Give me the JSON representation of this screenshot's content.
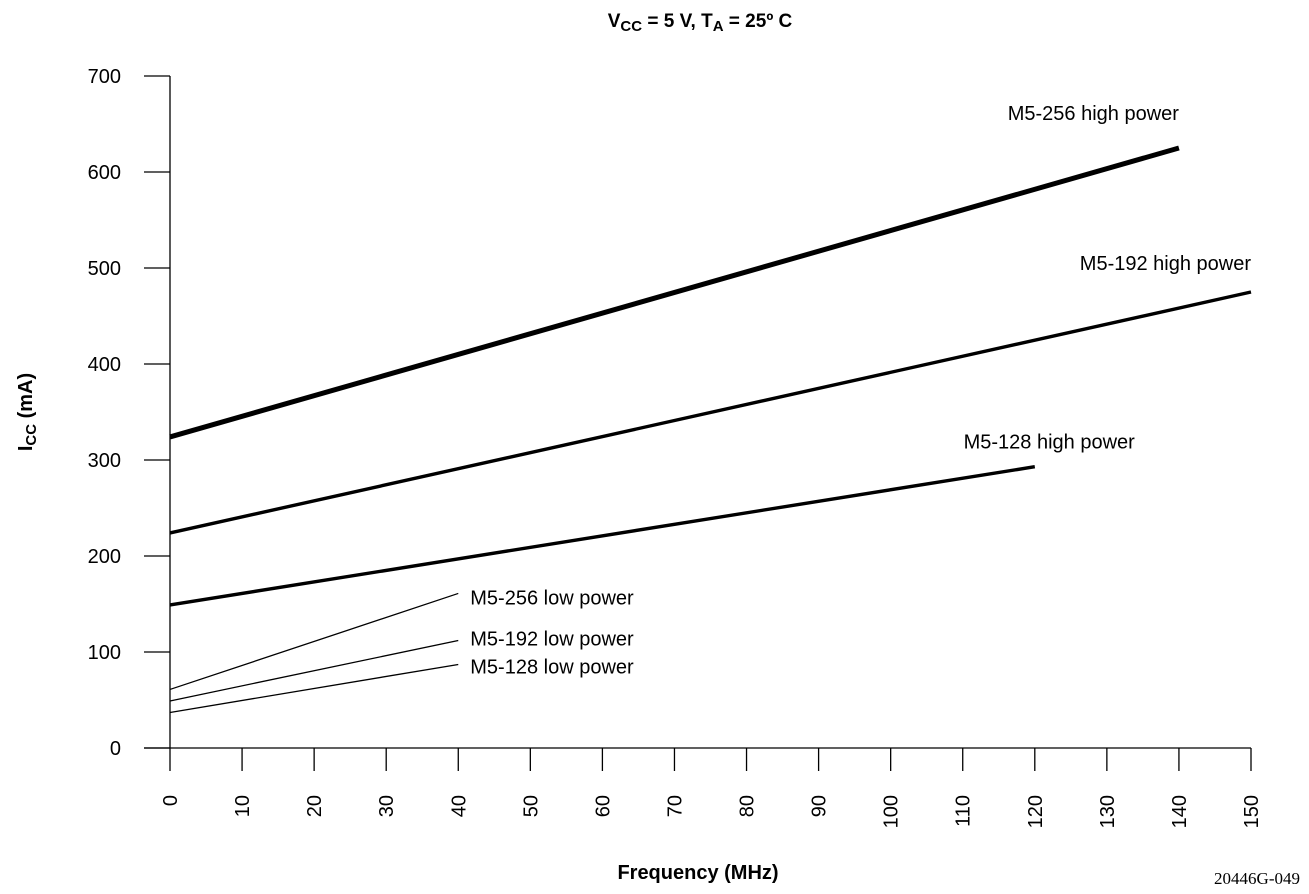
{
  "chart_data": {
    "type": "line",
    "title": {
      "v_main": "V",
      "v_sub": "CC",
      "v_rest": " = 5 V, T",
      "t_sub": "A",
      "t_rest": " = 25º C"
    },
    "xlabel": "Frequency (MHz)",
    "ylabel": {
      "main": "I",
      "sub": "CC",
      "rest": " (mA)"
    },
    "xlim": [
      0,
      150
    ],
    "ylim": [
      0,
      700
    ],
    "x_ticks": [
      0,
      10,
      20,
      30,
      40,
      50,
      60,
      70,
      80,
      90,
      100,
      110,
      120,
      130,
      140,
      150
    ],
    "y_ticks": [
      0,
      100,
      200,
      300,
      400,
      500,
      600,
      700
    ],
    "grid": false,
    "series": [
      {
        "name": "M5-256 high power",
        "x": [
          0,
          140
        ],
        "y": [
          324,
          625
        ],
        "weight": "heavy"
      },
      {
        "name": "M5-192 high power",
        "x": [
          0,
          150
        ],
        "y": [
          224,
          475
        ],
        "weight": "medium"
      },
      {
        "name": "M5-128 high power",
        "x": [
          0,
          120
        ],
        "y": [
          149,
          293
        ],
        "weight": "medium"
      },
      {
        "name": "M5-256 low power",
        "x": [
          0,
          40
        ],
        "y": [
          61,
          161
        ],
        "weight": "light"
      },
      {
        "name": "M5-192 low power",
        "x": [
          0,
          40
        ],
        "y": [
          49,
          112
        ],
        "weight": "light"
      },
      {
        "name": "M5-128 low power",
        "x": [
          0,
          40
        ],
        "y": [
          37,
          87
        ],
        "weight": "light"
      }
    ],
    "figure_id": "20446G-049"
  }
}
